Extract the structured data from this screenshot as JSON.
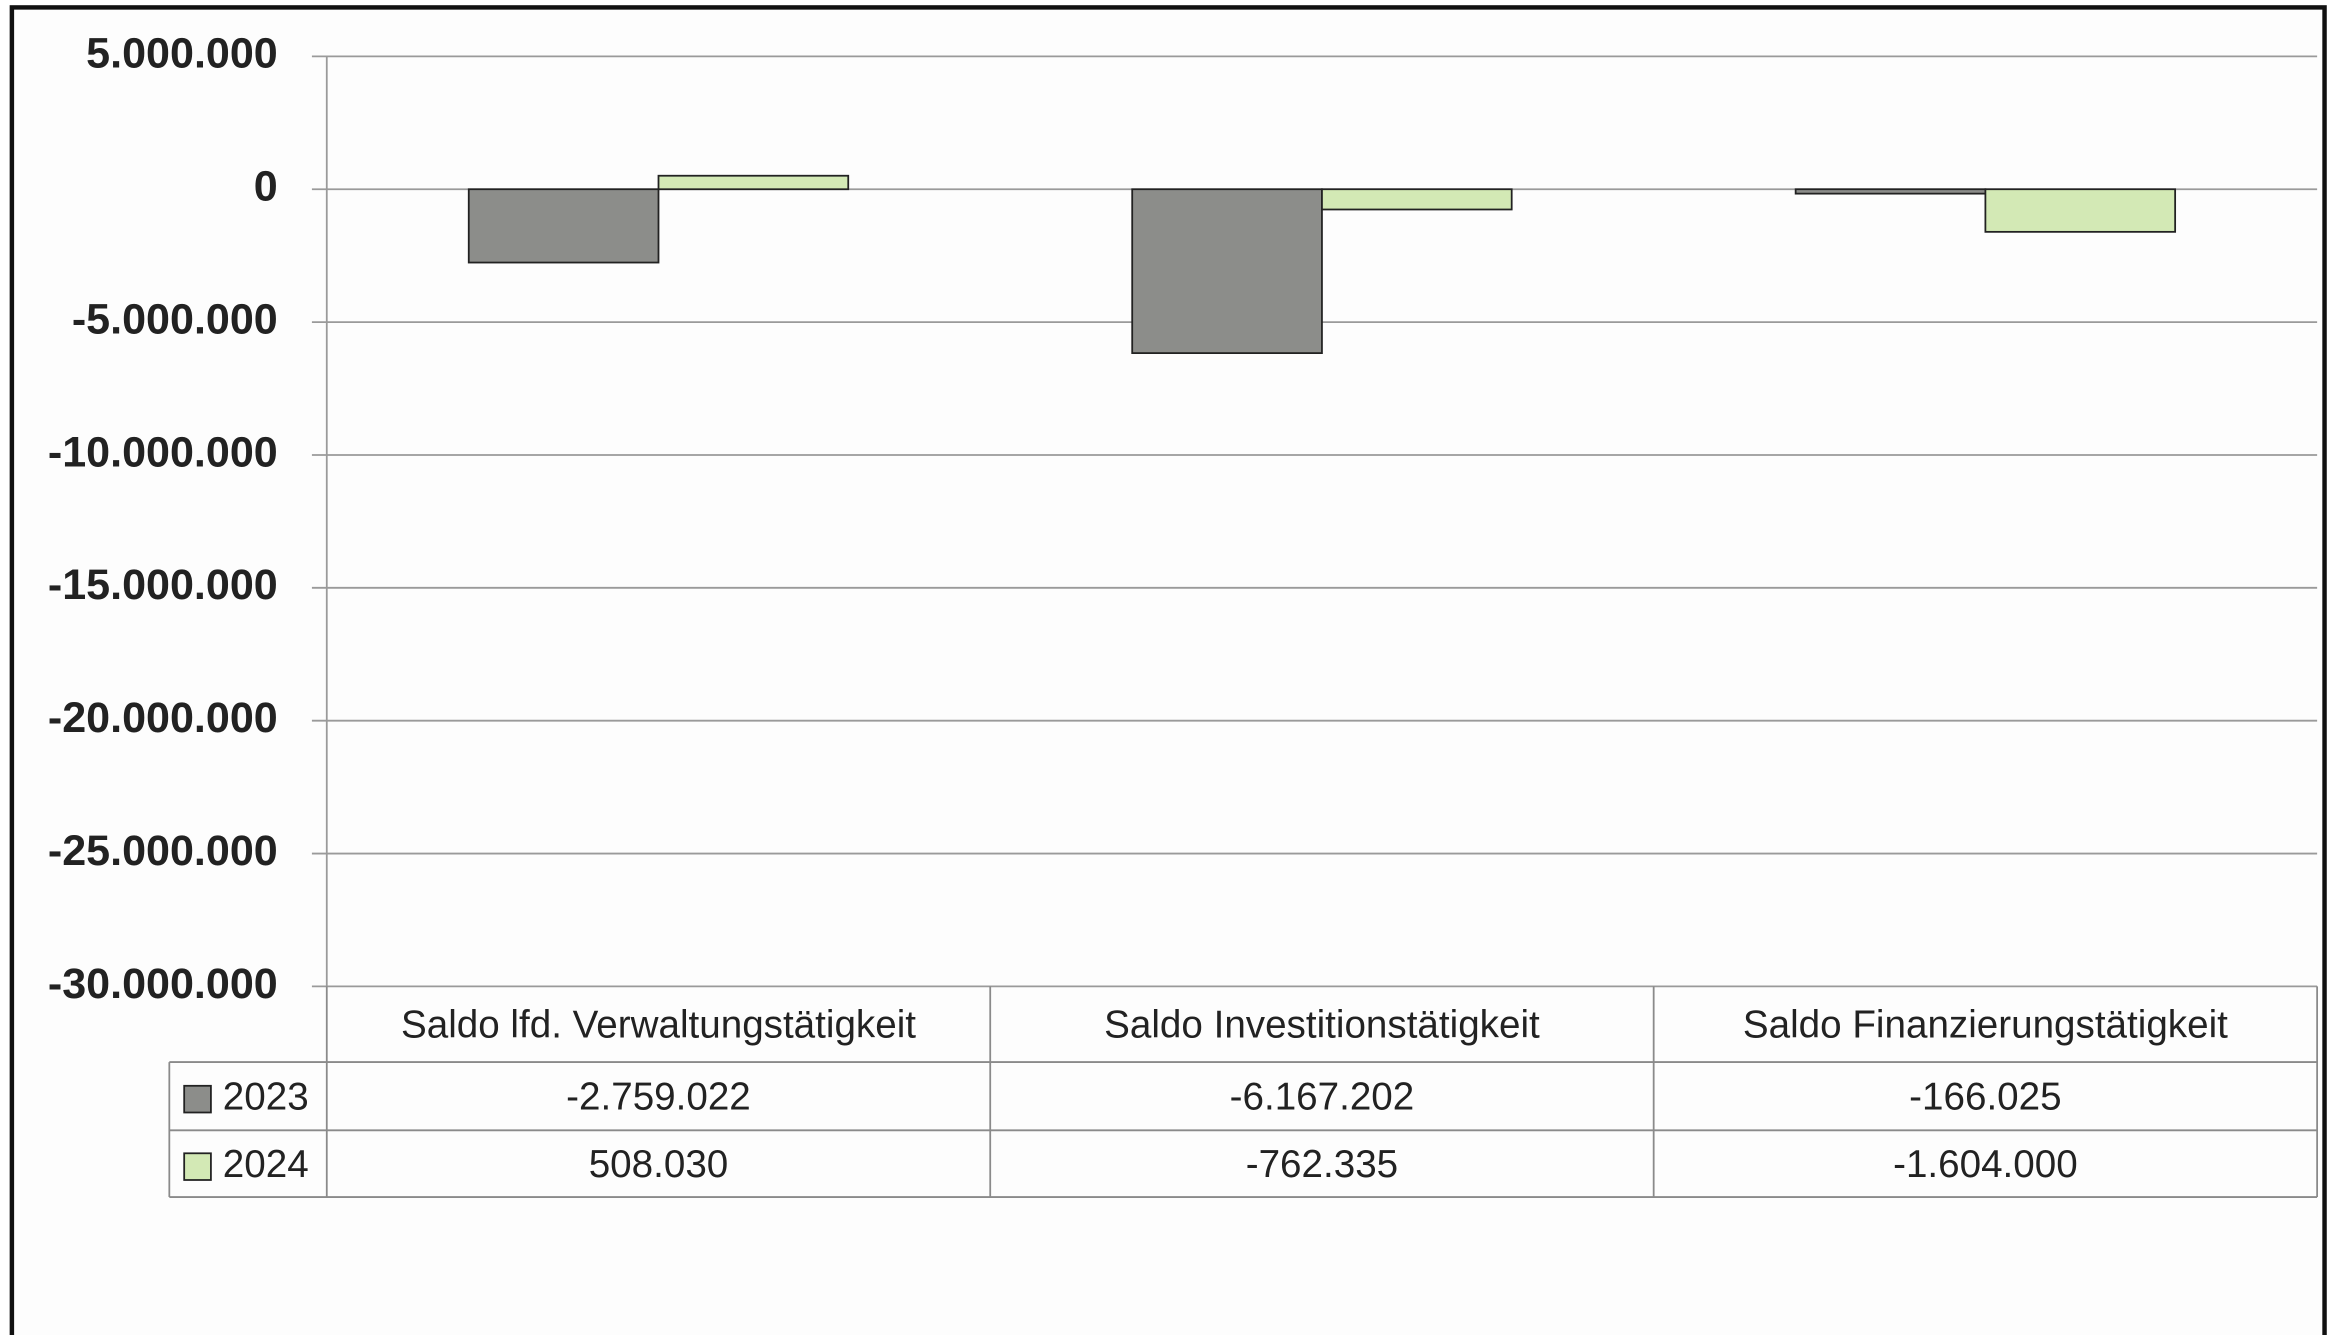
{
  "chart_data": {
    "type": "bar",
    "categories": [
      "Saldo lfd. Verwaltungstätigkeit",
      "Saldo Investitionstätigkeit",
      "Saldo Finanzierungstätigkeit"
    ],
    "series": [
      {
        "name": "2023",
        "color": "#8c8d8a",
        "values": [
          -2759022,
          -6167202,
          -166025
        ],
        "value_labels": [
          "-2.759.022",
          "-6.167.202",
          "-166.025"
        ]
      },
      {
        "name": "2024",
        "color": "#d3e9b5",
        "values": [
          508030,
          -762335,
          -1604000
        ],
        "value_labels": [
          "508.030",
          "-762.335",
          "-1.604.000"
        ]
      }
    ],
    "ylim": [
      -30000000,
      5000000
    ],
    "yticks": [
      {
        "value": 5000000,
        "label": "5.000.000"
      },
      0,
      {
        "value": -5000000,
        "label": "-5.000.000"
      },
      {
        "value": -10000000,
        "label": "-10.000.000"
      },
      {
        "value": -15000000,
        "label": "-15.000.000"
      },
      {
        "value": -20000000,
        "label": "-20.000.000"
      },
      {
        "value": -25000000,
        "label": "-25.000.000"
      },
      {
        "value": -30000000,
        "label": "-30.000.000"
      }
    ],
    "grid": true,
    "data_table": true
  }
}
